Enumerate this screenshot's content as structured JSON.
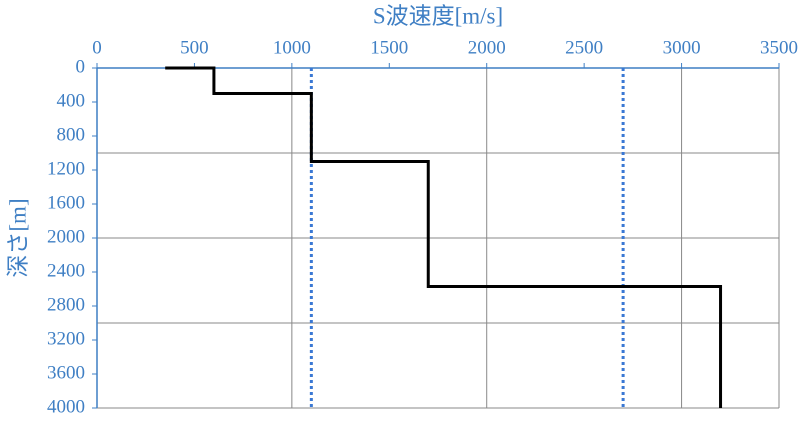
{
  "chart_data": {
    "type": "step-profile",
    "xlabel": "S波速度[m/s]",
    "ylabel": "深さ[m]",
    "xlim": [
      0,
      3500
    ],
    "xticks": [
      0,
      500,
      1000,
      1500,
      2000,
      2500,
      3000,
      3500
    ],
    "ylim": [
      0,
      4000
    ],
    "yticks": [
      0,
      400,
      800,
      1200,
      1600,
      2000,
      2400,
      2800,
      3200,
      3600,
      4000
    ],
    "y_inverted": true,
    "x_axis_position": "top",
    "xgrid": [
      1000,
      2000,
      3000
    ],
    "ygrid": [
      1000,
      2000,
      3000
    ],
    "series": [
      {
        "color": "#000000",
        "x": [
          350,
          600,
          600,
          1100,
          1100,
          1700,
          1700,
          3200,
          3200
        ],
        "y": [
          0,
          0,
          300,
          300,
          1100,
          1100,
          2570,
          2570,
          4000
        ]
      }
    ],
    "reference_lines": {
      "x": [
        1100,
        2700
      ],
      "color": "#3a78d4",
      "style": "dotted"
    },
    "axis_color": "#3f7fc4"
  }
}
